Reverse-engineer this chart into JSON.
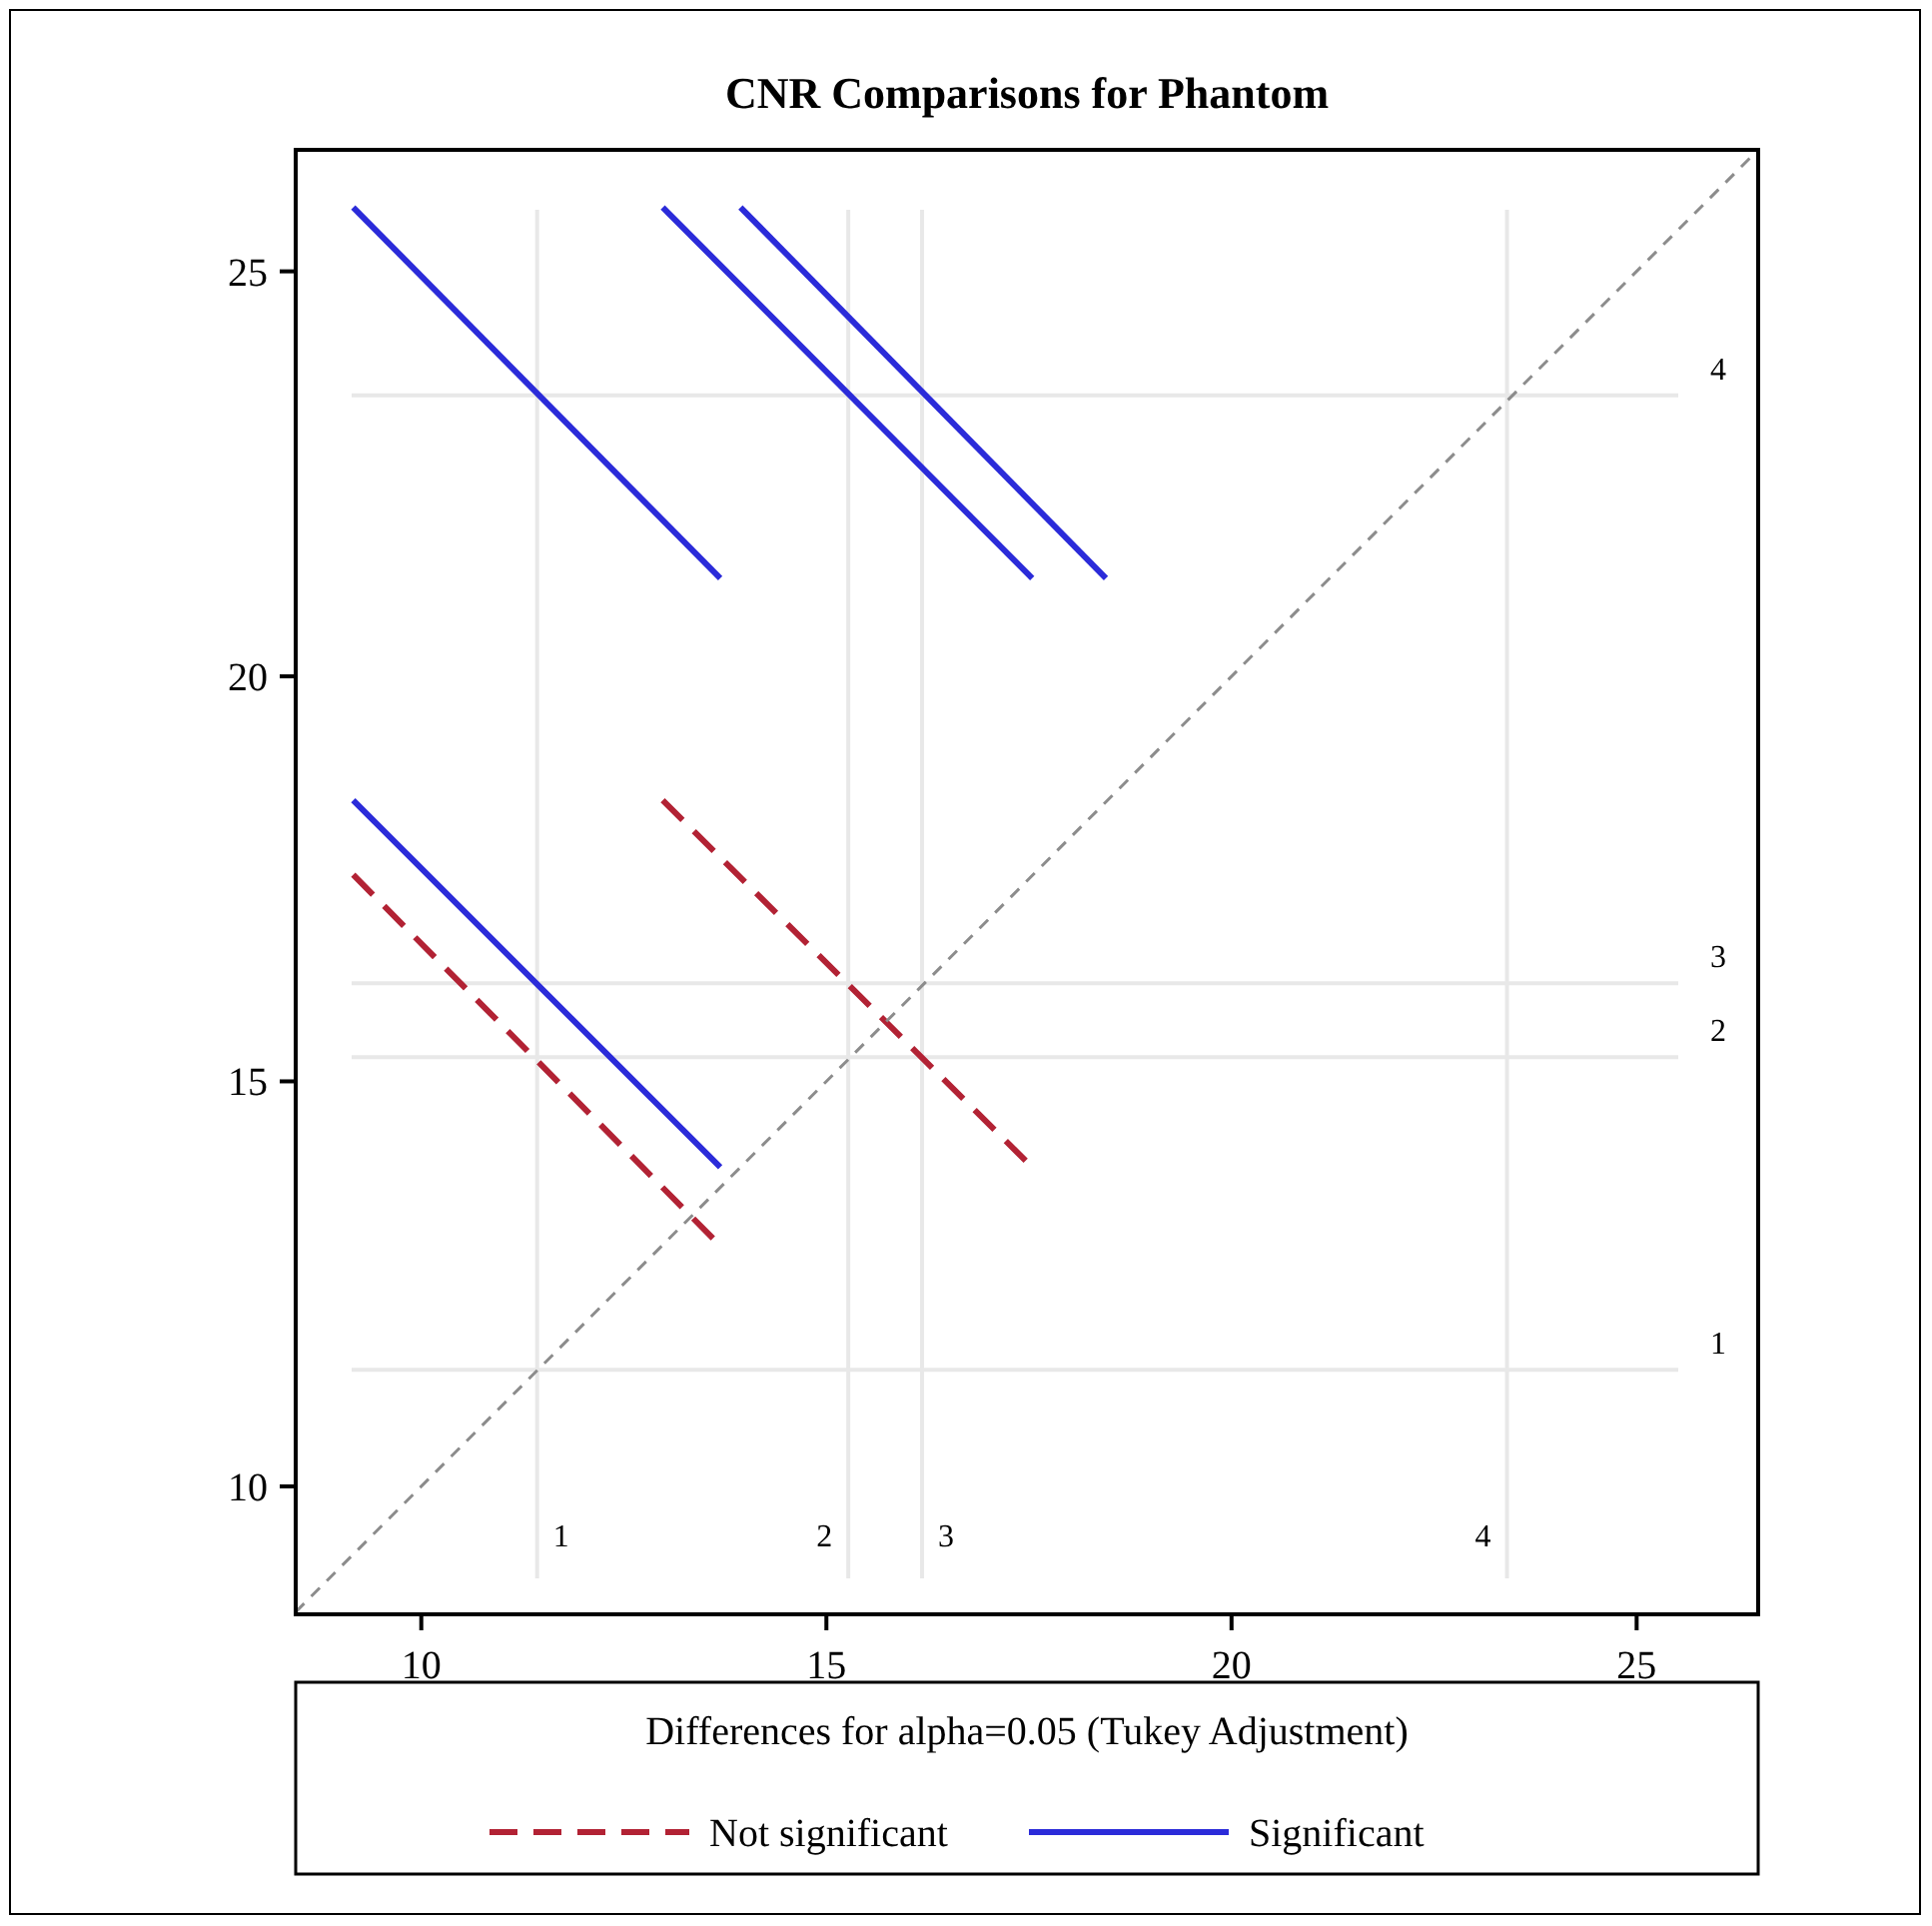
{
  "chart_data": {
    "type": "line",
    "title": "CNR Comparisons for Phantom",
    "legend_title": "Differences for alpha=0.05 (Tukey Adjustment)",
    "xlim": [
      8.45,
      26.5
    ],
    "ylim": [
      8.42,
      26.5
    ],
    "xticks": [
      10,
      15,
      20,
      25
    ],
    "yticks": [
      10,
      15,
      20,
      25
    ],
    "grid": false,
    "legend": "bottom",
    "series": [
      {
        "name": "Not significant",
        "color": "#b22234",
        "line_style": "dashed",
        "x": [
          9.16,
          13.69
        ],
        "values": [
          17.55,
          12.97
        ]
      },
      {
        "color": "#b22234",
        "line_style": "dashed",
        "x": [
          12.98,
          17.54
        ],
        "values": [
          18.47,
          13.94
        ]
      },
      {
        "name": "Significant",
        "color": "#2b2bd9",
        "line_style": "solid",
        "x": [
          9.16,
          13.69
        ],
        "values": [
          25.79,
          21.21
        ]
      },
      {
        "color": "#2b2bd9",
        "line_style": "solid",
        "x": [
          12.98,
          17.54
        ],
        "values": [
          25.79,
          21.21
        ]
      },
      {
        "color": "#2b2bd9",
        "line_style": "solid",
        "x": [
          13.94,
          18.45
        ],
        "values": [
          25.79,
          21.21
        ]
      },
      {
        "color": "#2b2bd9",
        "line_style": "solid",
        "x": [
          9.16,
          13.69
        ],
        "values": [
          18.47,
          13.94
        ]
      },
      {
        "color": "#8c8c8c",
        "line_style": "dashed",
        "x": [
          8.45,
          26.5
        ],
        "values": [
          8.45,
          26.5
        ]
      }
    ],
    "ref_lines": [
      {
        "axis": "x",
        "value": 11.43,
        "color": "#e8e8e8"
      },
      {
        "axis": "x",
        "value": 15.27,
        "color": "#e8e8e8"
      },
      {
        "axis": "x",
        "value": 16.18,
        "color": "#e8e8e8"
      },
      {
        "axis": "x",
        "value": 23.4,
        "color": "#e8e8e8"
      },
      {
        "axis": "y",
        "value": 11.44,
        "color": "#e8e8e8"
      },
      {
        "axis": "y",
        "value": 15.3,
        "color": "#e8e8e8"
      },
      {
        "axis": "y",
        "value": 16.21,
        "color": "#e8e8e8"
      },
      {
        "axis": "y",
        "value": 23.47,
        "color": "#e8e8e8"
      }
    ],
    "annotations": [
      {
        "text": "1",
        "x": 11.43
      },
      {
        "text": "2",
        "x": 15.27
      },
      {
        "text": "3",
        "x": 16.18
      },
      {
        "text": "4",
        "x": 23.4
      },
      "1",
      "2",
      "3",
      "4"
    ]
  }
}
